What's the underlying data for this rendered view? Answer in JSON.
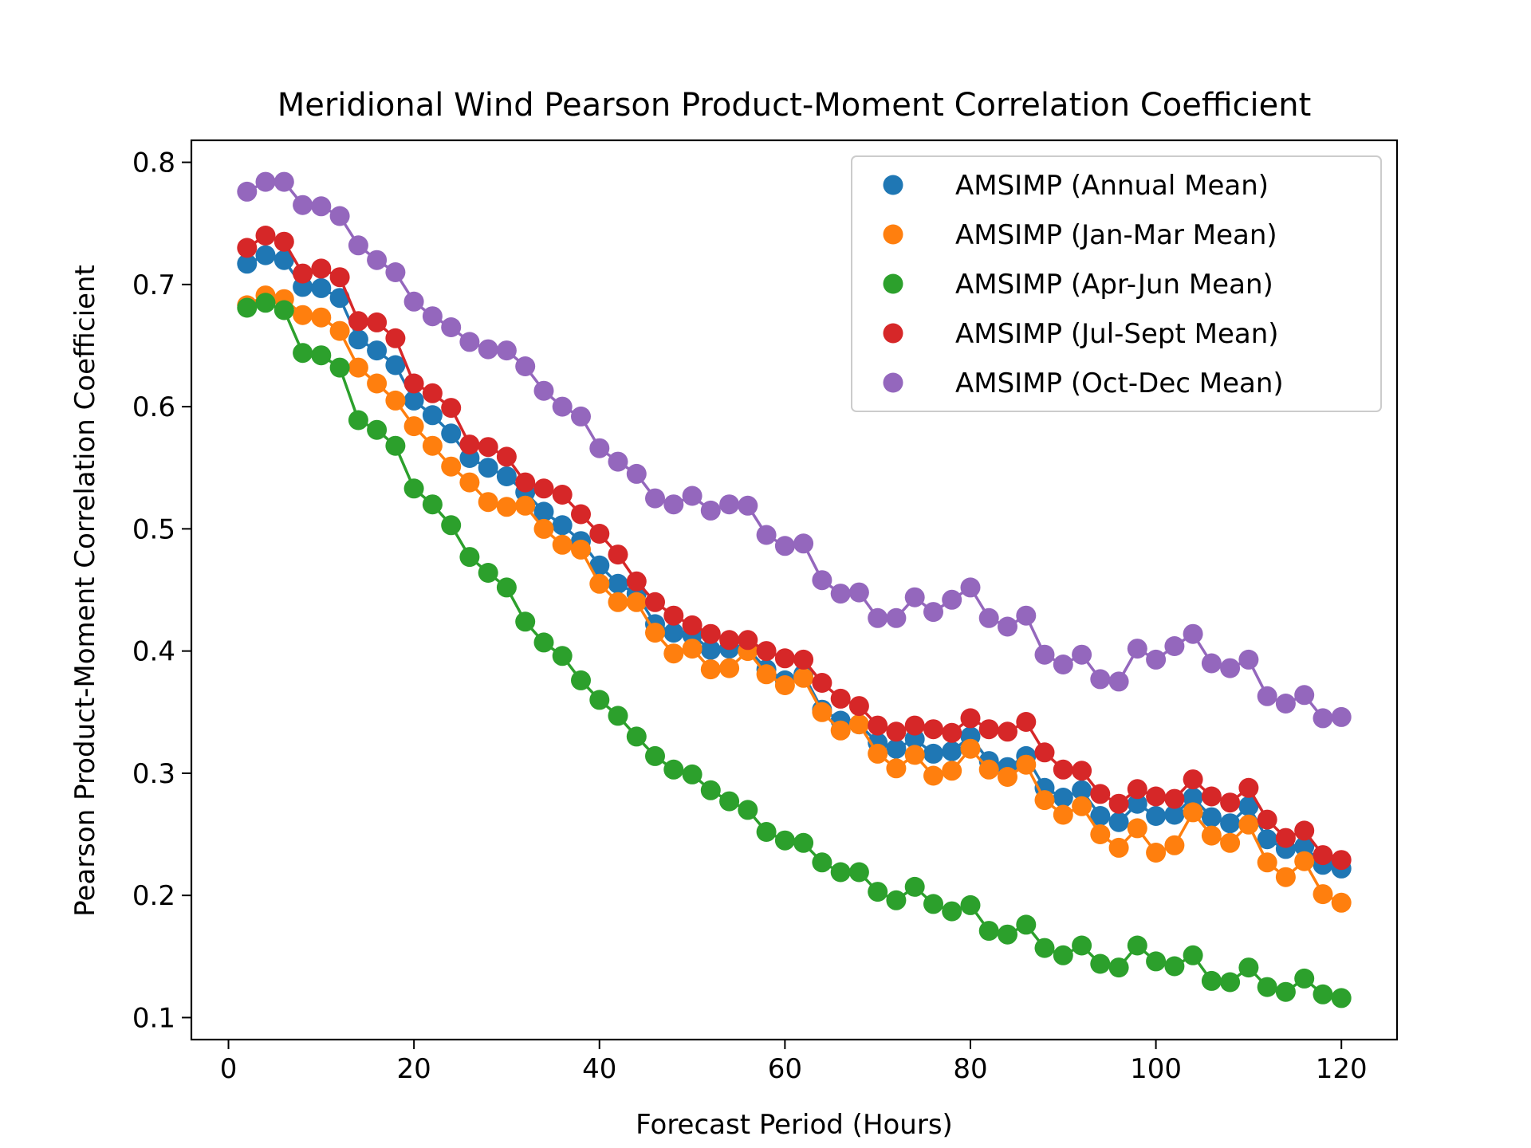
{
  "chart_data": {
    "type": "line",
    "title": "Meridional Wind Pearson Product-Moment Correlation Coefficient",
    "xlabel": "Forecast Period (Hours)",
    "ylabel": "Pearson Product-Moment Correlation Coefficient",
    "xlim": [
      -4,
      126
    ],
    "ylim": [
      0.082,
      0.818
    ],
    "xticks": [
      0,
      20,
      40,
      60,
      80,
      100,
      120
    ],
    "yticks": [
      0.1,
      0.2,
      0.3,
      0.4,
      0.5,
      0.6,
      0.7,
      0.8
    ],
    "xtick_labels": [
      "0",
      "20",
      "40",
      "60",
      "80",
      "100",
      "120"
    ],
    "ytick_labels": [
      "0.1",
      "0.2",
      "0.3",
      "0.4",
      "0.5",
      "0.6",
      "0.7",
      "0.8"
    ],
    "grid": false,
    "legend_position": "top-right",
    "x": [
      2,
      4,
      6,
      8,
      10,
      12,
      14,
      16,
      18,
      20,
      22,
      24,
      26,
      28,
      30,
      32,
      34,
      36,
      38,
      40,
      42,
      44,
      46,
      48,
      50,
      52,
      54,
      56,
      58,
      60,
      62,
      64,
      66,
      68,
      70,
      72,
      74,
      76,
      78,
      80,
      82,
      84,
      86,
      88,
      90,
      92,
      94,
      96,
      98,
      100,
      102,
      104,
      106,
      108,
      110,
      112,
      114,
      116,
      118,
      120
    ],
    "series": [
      {
        "name": "AMSIMP (Annual Mean)",
        "color": "#1f77b4",
        "values": [
          0.717,
          0.724,
          0.72,
          0.698,
          0.697,
          0.689,
          0.655,
          0.646,
          0.634,
          0.605,
          0.593,
          0.578,
          0.558,
          0.55,
          0.543,
          0.53,
          0.514,
          0.503,
          0.49,
          0.47,
          0.455,
          0.447,
          0.422,
          0.415,
          0.413,
          0.401,
          0.402,
          0.402,
          0.385,
          0.376,
          0.381,
          0.352,
          0.343,
          0.34,
          0.325,
          0.32,
          0.328,
          0.316,
          0.318,
          0.33,
          0.31,
          0.305,
          0.314,
          0.288,
          0.28,
          0.286,
          0.265,
          0.26,
          0.275,
          0.265,
          0.266,
          0.28,
          0.264,
          0.259,
          0.273,
          0.246,
          0.238,
          0.24,
          0.225,
          0.222
        ]
      },
      {
        "name": "AMSIMP (Jan-Mar Mean)",
        "color": "#ff7f0e",
        "values": [
          0.683,
          0.691,
          0.688,
          0.675,
          0.673,
          0.662,
          0.632,
          0.619,
          0.605,
          0.584,
          0.568,
          0.551,
          0.538,
          0.522,
          0.518,
          0.519,
          0.5,
          0.487,
          0.483,
          0.455,
          0.44,
          0.44,
          0.415,
          0.398,
          0.402,
          0.385,
          0.386,
          0.4,
          0.381,
          0.372,
          0.378,
          0.35,
          0.335,
          0.34,
          0.316,
          0.304,
          0.315,
          0.298,
          0.302,
          0.32,
          0.303,
          0.297,
          0.307,
          0.278,
          0.266,
          0.273,
          0.25,
          0.239,
          0.255,
          0.235,
          0.241,
          0.268,
          0.249,
          0.243,
          0.258,
          0.227,
          0.215,
          0.228,
          0.201,
          0.194
        ]
      },
      {
        "name": "AMSIMP (Apr-Jun Mean)",
        "color": "#2ca02c",
        "values": [
          0.681,
          0.685,
          0.679,
          0.644,
          0.642,
          0.632,
          0.589,
          0.581,
          0.568,
          0.533,
          0.52,
          0.503,
          0.477,
          0.464,
          0.452,
          0.424,
          0.407,
          0.396,
          0.376,
          0.36,
          0.347,
          0.33,
          0.314,
          0.303,
          0.299,
          0.286,
          0.277,
          0.27,
          0.252,
          0.245,
          0.243,
          0.227,
          0.219,
          0.219,
          0.203,
          0.196,
          0.207,
          0.193,
          0.187,
          0.192,
          0.171,
          0.168,
          0.176,
          0.157,
          0.151,
          0.159,
          0.144,
          0.141,
          0.159,
          0.146,
          0.142,
          0.151,
          0.13,
          0.129,
          0.141,
          0.125,
          0.121,
          0.132,
          0.119,
          0.116
        ]
      },
      {
        "name": "AMSIMP (Jul-Sept Mean)",
        "color": "#d62728",
        "values": [
          0.73,
          0.74,
          0.735,
          0.709,
          0.713,
          0.706,
          0.67,
          0.669,
          0.656,
          0.619,
          0.611,
          0.599,
          0.569,
          0.567,
          0.559,
          0.538,
          0.533,
          0.528,
          0.512,
          0.496,
          0.479,
          0.457,
          0.44,
          0.429,
          0.421,
          0.414,
          0.409,
          0.409,
          0.4,
          0.394,
          0.393,
          0.374,
          0.361,
          0.355,
          0.339,
          0.334,
          0.339,
          0.336,
          0.333,
          0.345,
          0.336,
          0.334,
          0.342,
          0.317,
          0.303,
          0.302,
          0.283,
          0.275,
          0.287,
          0.281,
          0.279,
          0.295,
          0.281,
          0.276,
          0.288,
          0.262,
          0.247,
          0.253,
          0.233,
          0.229
        ]
      },
      {
        "name": "AMSIMP (Oct-Dec Mean)",
        "color": "#9467bd",
        "values": [
          0.776,
          0.784,
          0.784,
          0.765,
          0.764,
          0.756,
          0.732,
          0.72,
          0.71,
          0.686,
          0.674,
          0.665,
          0.653,
          0.647,
          0.646,
          0.633,
          0.613,
          0.6,
          0.592,
          0.566,
          0.555,
          0.545,
          0.525,
          0.52,
          0.527,
          0.515,
          0.52,
          0.519,
          0.495,
          0.486,
          0.488,
          0.458,
          0.447,
          0.448,
          0.427,
          0.427,
          0.444,
          0.432,
          0.442,
          0.452,
          0.427,
          0.42,
          0.429,
          0.397,
          0.389,
          0.397,
          0.377,
          0.375,
          0.402,
          0.393,
          0.404,
          0.414,
          0.39,
          0.386,
          0.393,
          0.363,
          0.357,
          0.364,
          0.345,
          0.346
        ]
      }
    ]
  }
}
